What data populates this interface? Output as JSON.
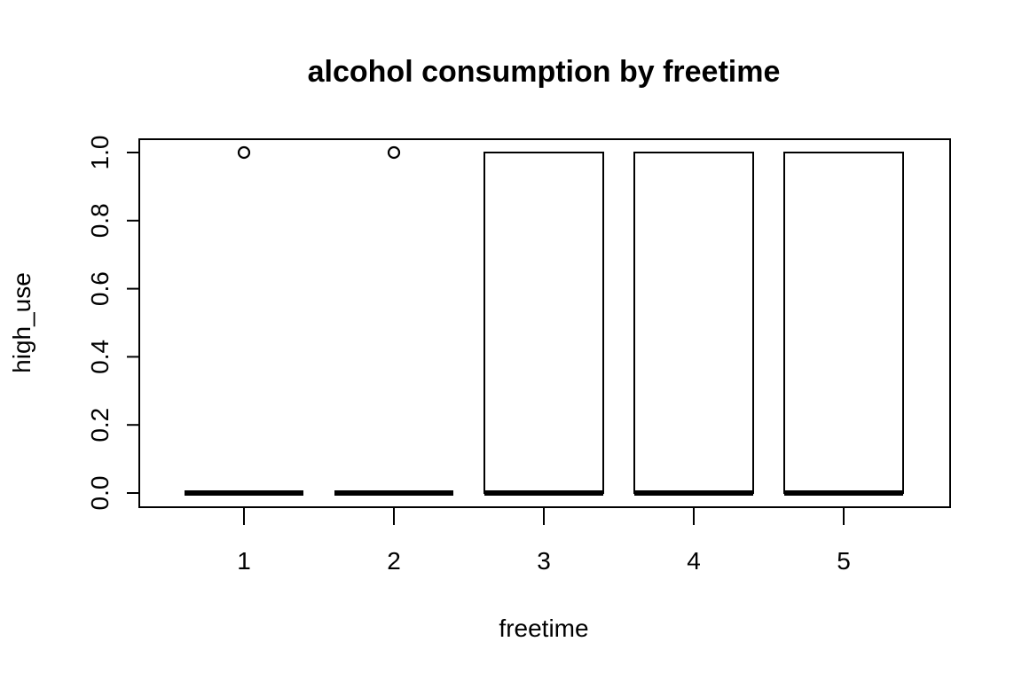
{
  "chart_data": {
    "type": "boxplot",
    "title": "alcohol consumption by freetime",
    "xlabel": "freetime",
    "ylabel": "high_use",
    "categories": [
      "1",
      "2",
      "3",
      "4",
      "5"
    ],
    "ylim": [
      0.0,
      1.0
    ],
    "yticks": [
      "0.0",
      "0.2",
      "0.4",
      "0.6",
      "0.8",
      "1.0"
    ],
    "boxes": [
      {
        "category": "1",
        "q1": 0,
        "median": 0,
        "q3": 0,
        "whisker_low": 0,
        "whisker_high": 0,
        "outliers": [
          1
        ]
      },
      {
        "category": "2",
        "q1": 0,
        "median": 0,
        "q3": 0,
        "whisker_low": 0,
        "whisker_high": 0,
        "outliers": [
          1
        ]
      },
      {
        "category": "3",
        "q1": 0,
        "median": 0,
        "q3": 1,
        "whisker_low": 0,
        "whisker_high": 1,
        "outliers": []
      },
      {
        "category": "4",
        "q1": 0,
        "median": 0,
        "q3": 1,
        "whisker_low": 0,
        "whisker_high": 1,
        "outliers": []
      },
      {
        "category": "5",
        "q1": 0,
        "median": 0,
        "q3": 1,
        "whisker_low": 0,
        "whisker_high": 1,
        "outliers": []
      }
    ],
    "grid": false
  }
}
